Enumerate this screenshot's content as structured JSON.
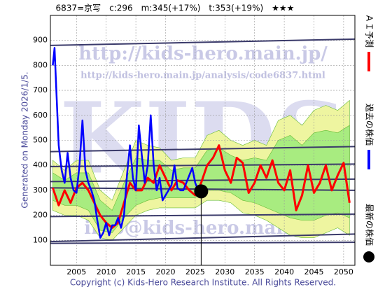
{
  "chart_data": {
    "type": "line",
    "title": "6837=京写　c:296　m:345(+17%)　t:353(+19%)　★★★",
    "generated": "Generated on Monday 2026/1/5.",
    "copyright": "Copyright (c) Kids-Hero Research Institute. All Rights Reserved.",
    "watermarks": [
      "http://kids-hero.main.jp/",
      "http://kids-hero.main.jp/analysis/code6837.html",
      "KIDS",
      "info@kids-hero.main.jp"
    ],
    "xlim": [
      2000.6,
      2051.9
    ],
    "ylim": [
      0,
      1000
    ],
    "xticks": [
      2005,
      2010,
      2015,
      2020,
      2025,
      2030,
      2035,
      2040,
      2045,
      2050
    ],
    "yticks": [
      100,
      200,
      300,
      400,
      500,
      600,
      700,
      800,
      900
    ],
    "grid": true,
    "bands": [
      {
        "color": "#eef5a0",
        "x": [
          2001,
          2003,
          2005,
          2007,
          2009,
          2011,
          2013,
          2015,
          2017,
          2019,
          2021,
          2023,
          2025,
          2027,
          2029,
          2031,
          2033,
          2035,
          2037,
          2039,
          2041,
          2043,
          2045,
          2047,
          2049,
          2051
        ],
        "upper": [
          420,
          380,
          420,
          420,
          300,
          260,
          380,
          500,
          480,
          470,
          420,
          430,
          430,
          520,
          540,
          500,
          480,
          500,
          480,
          580,
          600,
          560,
          620,
          640,
          620,
          660
        ],
        "lower": [
          220,
          200,
          200,
          180,
          110,
          100,
          150,
          200,
          220,
          230,
          230,
          230,
          230,
          260,
          260,
          250,
          210,
          200,
          180,
          150,
          120,
          110,
          110,
          130,
          150,
          120
        ]
      },
      {
        "color": "#a8ec80",
        "x": [
          2001,
          2003,
          2005,
          2007,
          2009,
          2011,
          2013,
          2015,
          2017,
          2019,
          2021,
          2023,
          2025,
          2027,
          2029,
          2031,
          2033,
          2035,
          2037,
          2039,
          2041,
          2043,
          2045,
          2047,
          2049,
          2051
        ],
        "upper": [
          370,
          340,
          370,
          370,
          260,
          220,
          330,
          430,
          420,
          420,
          380,
          390,
          390,
          460,
          470,
          440,
          420,
          430,
          420,
          500,
          520,
          480,
          530,
          540,
          530,
          560
        ],
        "lower": [
          260,
          240,
          240,
          220,
          140,
          130,
          190,
          240,
          260,
          270,
          270,
          270,
          270,
          300,
          300,
          290,
          260,
          250,
          230,
          210,
          190,
          180,
          180,
          200,
          210,
          190
        ]
      }
    ],
    "trend_color": "#3a3a6a",
    "trend_lines": [
      {
        "x": [
          2000.6,
          2051.9
        ],
        "values": [
          880,
          905
        ]
      },
      {
        "x": [
          2000.6,
          2051.9
        ],
        "values": [
          455,
          475
        ]
      },
      {
        "x": [
          2000.6,
          2051.9
        ],
        "values": [
          395,
          405
        ]
      },
      {
        "x": [
          2000.6,
          2051.9
        ],
        "values": [
          335,
          345
        ]
      },
      {
        "x": [
          2000.6,
          2051.9
        ],
        "values": [
          310,
          300
        ]
      },
      {
        "x": [
          2000.6,
          2051.9
        ],
        "values": [
          195,
          205
        ]
      },
      {
        "x": [
          2000.6,
          2051.9
        ],
        "values": [
          95,
          125
        ]
      },
      {
        "x": [
          2000.6,
          2051.9
        ],
        "values": [
          88,
          92
        ]
      }
    ],
    "series": [
      {
        "name": "ＡＩ予測",
        "color": "#ff0000",
        "x": [
          2001,
          2002,
          2003,
          2004,
          2005,
          2006,
          2007,
          2008,
          2009,
          2010,
          2011,
          2012,
          2013,
          2014,
          2015,
          2016,
          2017,
          2018,
          2019,
          2020,
          2021,
          2022,
          2023,
          2024,
          2025,
          2026,
          2027,
          2028,
          2029,
          2030,
          2031,
          2032,
          2033,
          2034,
          2035,
          2036,
          2037,
          2038,
          2039,
          2040,
          2041,
          2042,
          2043,
          2044,
          2045,
          2046,
          2047,
          2048,
          2049,
          2050,
          2051
        ],
        "values": [
          310,
          240,
          300,
          250,
          310,
          330,
          300,
          250,
          200,
          170,
          150,
          170,
          250,
          330,
          300,
          300,
          350,
          330,
          400,
          350,
          300,
          340,
          330,
          300,
          280,
          330,
          400,
          430,
          480,
          380,
          330,
          430,
          410,
          290,
          330,
          400,
          350,
          420,
          330,
          300,
          380,
          220,
          280,
          400,
          290,
          330,
          400,
          300,
          360,
          410,
          250
        ]
      },
      {
        "name": "過去の株価",
        "color": "#0000ff",
        "x": [
          2001.0,
          2001.3,
          2001.6,
          2002.0,
          2002.5,
          2003.0,
          2003.5,
          2004.0,
          2004.5,
          2005.0,
          2005.5,
          2006.0,
          2006.5,
          2007.0,
          2007.5,
          2008.0,
          2008.5,
          2009.0,
          2009.5,
          2010.0,
          2010.5,
          2011.0,
          2011.5,
          2012.0,
          2012.5,
          2013.0,
          2013.5,
          2014.0,
          2014.5,
          2015.0,
          2015.5,
          2016.0,
          2016.5,
          2017.0,
          2017.5,
          2018.0,
          2018.5,
          2019.0,
          2019.5,
          2020.0,
          2020.5,
          2021.0,
          2021.5,
          2022.0,
          2022.5,
          2023.0,
          2023.5,
          2024.0,
          2024.5,
          2025.0,
          2025.5
        ],
        "values": [
          800,
          870,
          700,
          480,
          380,
          330,
          450,
          350,
          300,
          290,
          400,
          580,
          380,
          330,
          300,
          260,
          180,
          110,
          130,
          170,
          120,
          160,
          160,
          190,
          150,
          200,
          360,
          480,
          350,
          300,
          560,
          440,
          330,
          400,
          600,
          400,
          300,
          350,
          260,
          280,
          300,
          320,
          400,
          310,
          300,
          300,
          330,
          360,
          390,
          330,
          300
        ]
      },
      {
        "name": "最新の株価",
        "color": "#000000",
        "x": [
          2026
        ],
        "values": [
          296
        ]
      }
    ]
  }
}
